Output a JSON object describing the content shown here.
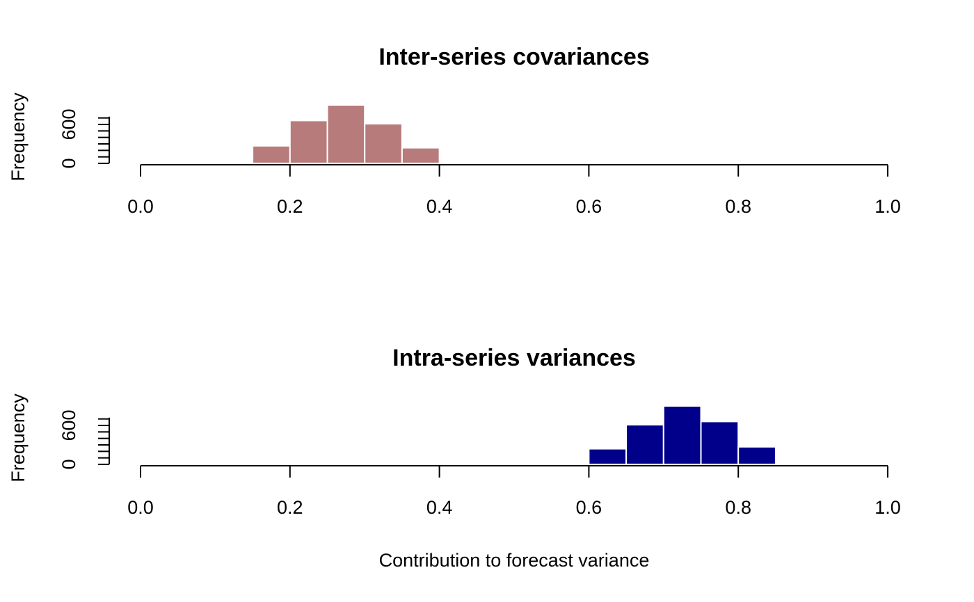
{
  "chart_data": [
    {
      "type": "bar",
      "title": "Inter-series covariances",
      "ylabel": "Frequency",
      "xlabel": "",
      "xlim": [
        0,
        1
      ],
      "ylim": [
        0,
        600
      ],
      "x_ticks": [
        "0.0",
        "0.2",
        "0.4",
        "0.6",
        "0.8",
        "1.0"
      ],
      "y_tick_labels": [
        "0",
        "600"
      ],
      "bin_width": 0.05,
      "bin_starts": [
        0.1,
        0.15,
        0.2,
        0.25,
        0.3,
        0.35,
        0.4
      ],
      "values": [
        10,
        270,
        660,
        900,
        610,
        240,
        15
      ],
      "color": "#b77b7b"
    },
    {
      "type": "bar",
      "title": "Intra-series variances",
      "ylabel": "Frequency",
      "xlabel": "Contribution to forecast variance",
      "xlim": [
        0,
        1
      ],
      "ylim": [
        0,
        600
      ],
      "x_ticks": [
        "0.0",
        "0.2",
        "0.4",
        "0.6",
        "0.8",
        "1.0"
      ],
      "y_tick_labels": [
        "0",
        "600"
      ],
      "bin_width": 0.05,
      "bin_starts": [
        0.55,
        0.6,
        0.65,
        0.7,
        0.75,
        0.8,
        0.85
      ],
      "values": [
        15,
        240,
        610,
        900,
        660,
        270,
        10
      ],
      "color": "#00008b"
    }
  ]
}
